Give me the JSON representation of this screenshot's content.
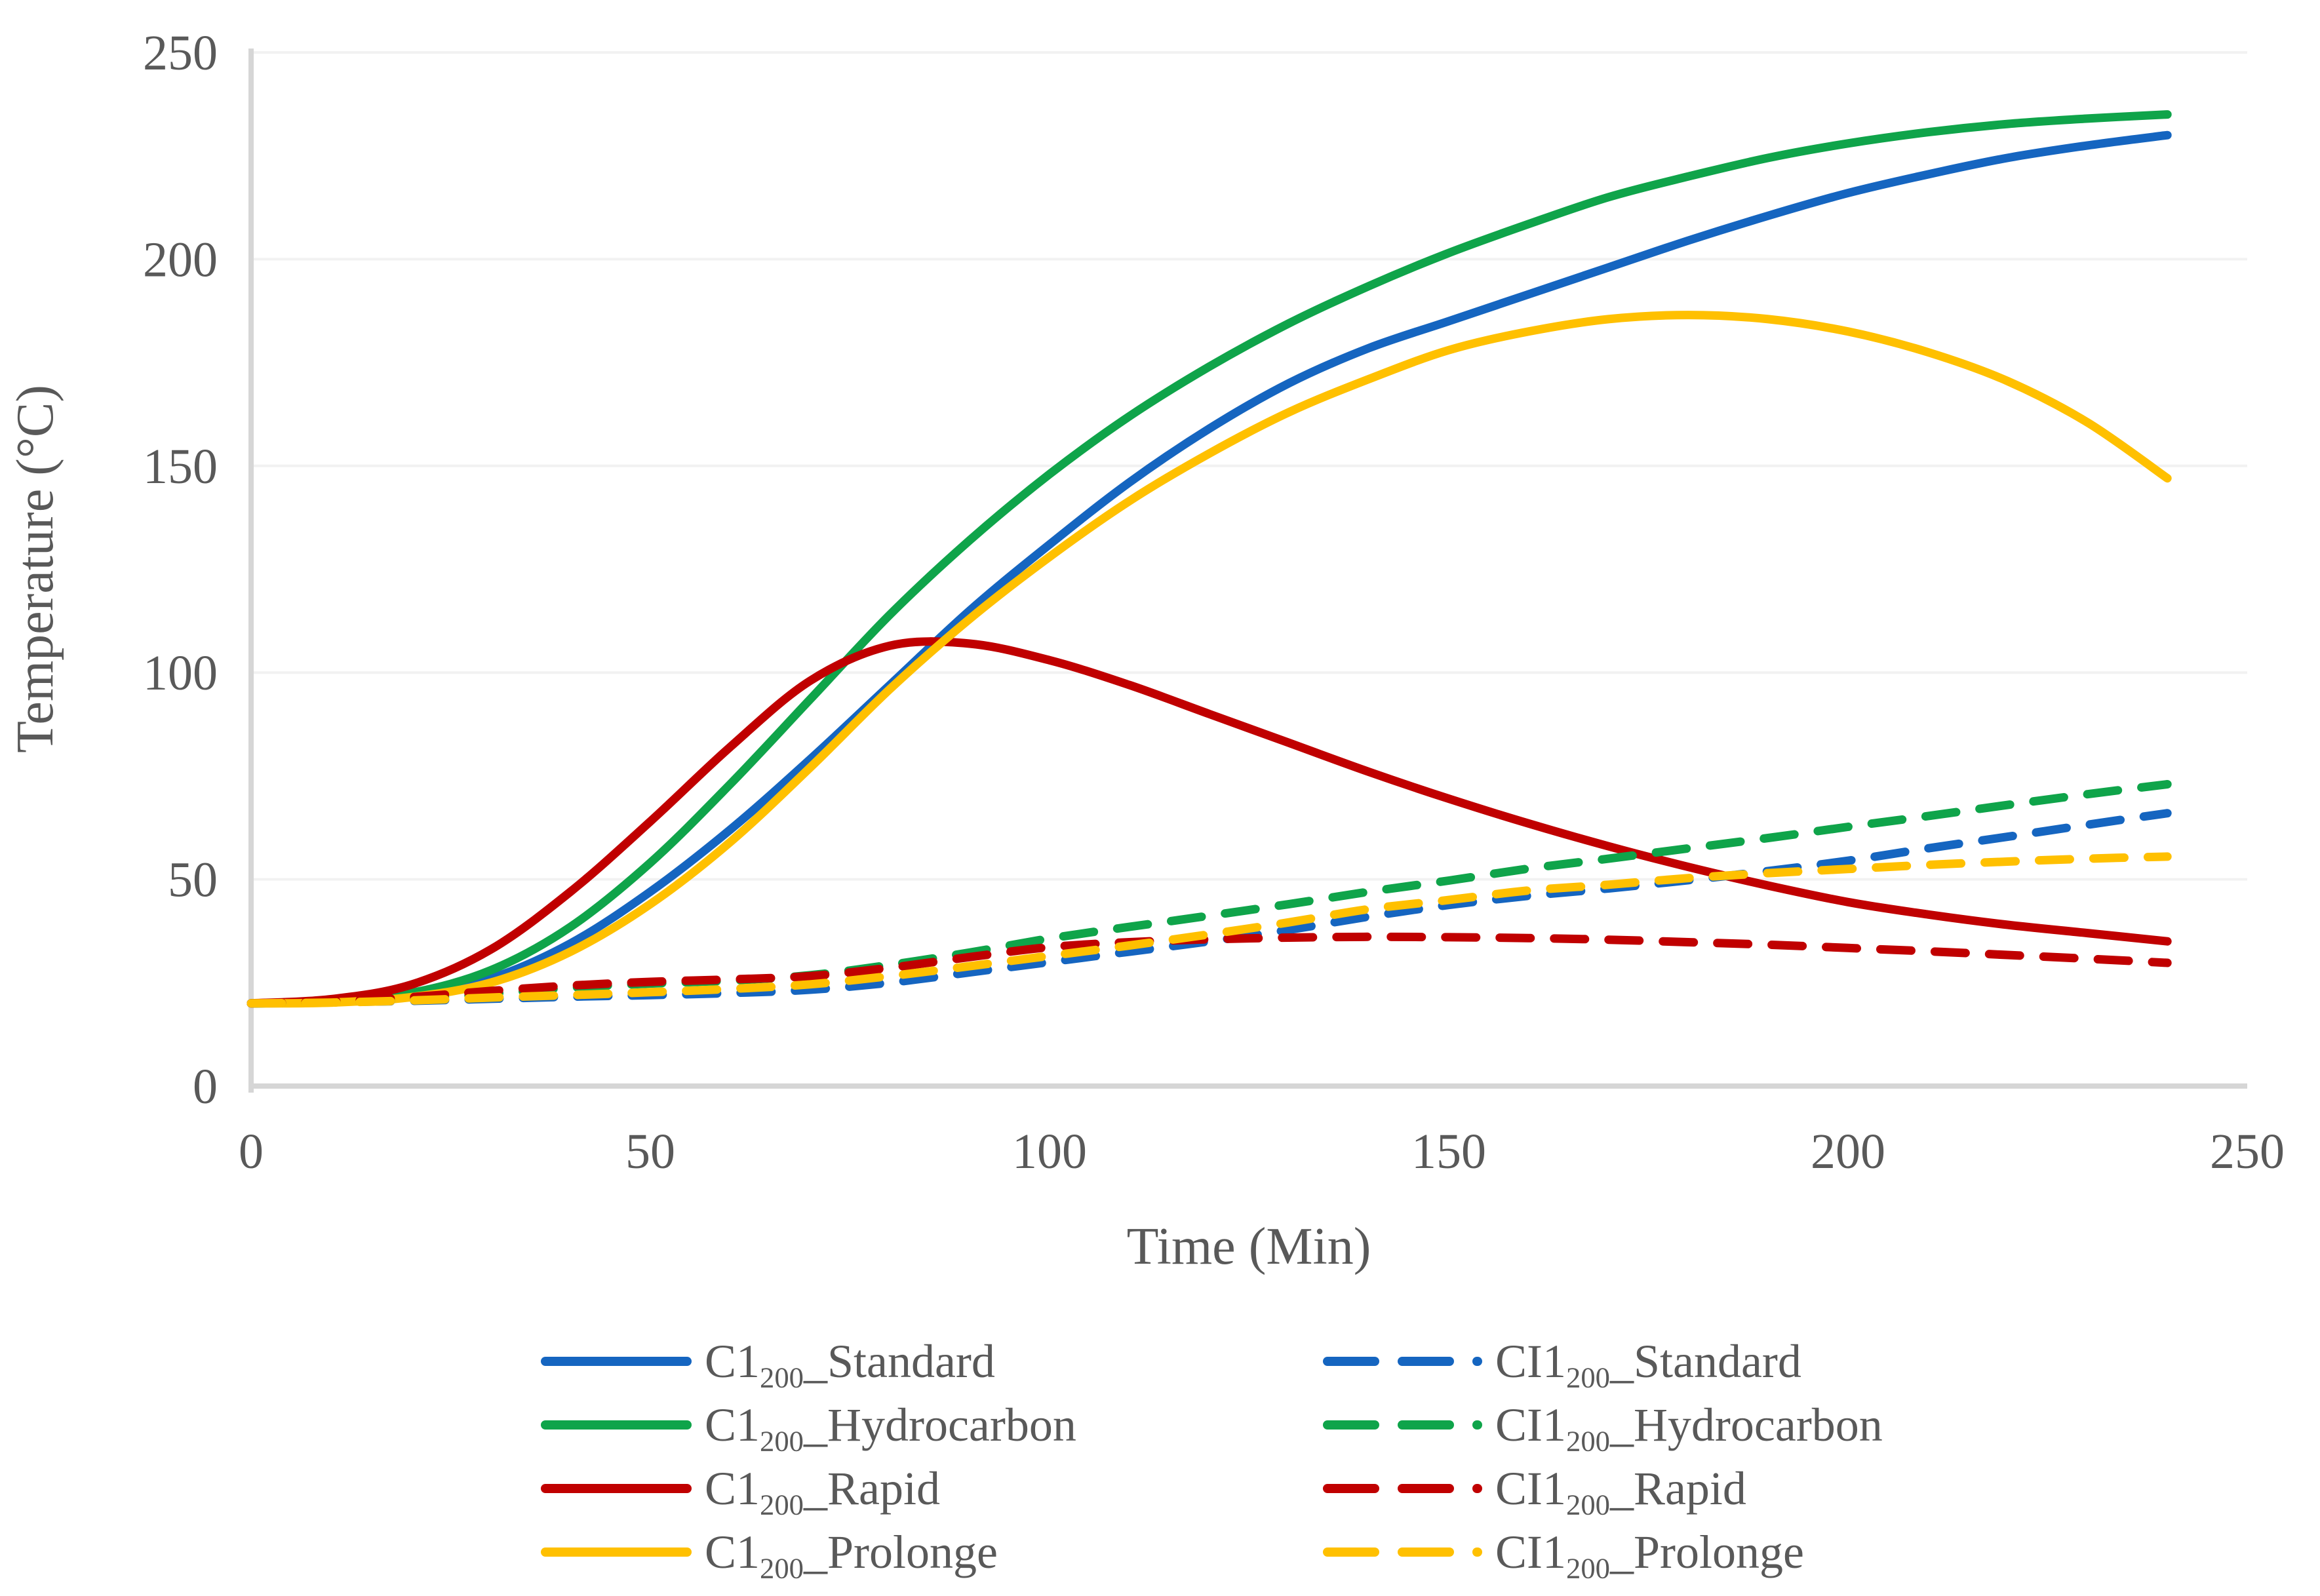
{
  "background": "#FFFFFF",
  "colors": {
    "text": "#595959",
    "gridline": "#F2F2F2",
    "axis_line": "#D6D6D6",
    "blue": "#1565C0",
    "green": "#0FA44A",
    "red": "#C00000",
    "yellow": "#FFC000"
  },
  "chart_data": {
    "type": "line",
    "title": "",
    "xlabel": "Time (Min)",
    "ylabel": "Temperature (°C)",
    "xlim": [
      0,
      250
    ],
    "ylim": [
      0,
      250
    ],
    "x_ticks": [
      0,
      50,
      100,
      150,
      200,
      250
    ],
    "y_ticks": [
      0,
      50,
      100,
      150,
      200,
      250
    ],
    "grid": "horizontal-only",
    "legend_position": "bottom-two-columns",
    "x": [
      0,
      10,
      20,
      30,
      40,
      50,
      60,
      70,
      80,
      90,
      100,
      110,
      120,
      130,
      140,
      150,
      160,
      170,
      180,
      190,
      200,
      210,
      220,
      230,
      240
    ],
    "series": [
      {
        "name": "C1200_Standard",
        "label_main": "C1",
        "label_sub": "200",
        "label_rest": "_Standard",
        "color": "#1565C0",
        "style": "solid",
        "values": [
          20,
          20.3,
          21.8,
          26,
          34.5,
          47,
          62,
          79,
          97,
          115,
          131,
          146,
          159,
          170,
          178.5,
          185,
          191.5,
          198,
          204.5,
          210.5,
          216,
          220.5,
          224.5,
          227.5,
          230
        ]
      },
      {
        "name": "C1200_Hydrocarbon",
        "label_main": "C1",
        "label_sub": "200",
        "label_rest": "_Hydrocarbon",
        "color": "#0FA44A",
        "style": "solid",
        "values": [
          20,
          20.5,
          22.5,
          28,
          38.5,
          54,
          73,
          93.5,
          114,
          132,
          148,
          162,
          174,
          184.5,
          193.5,
          201.5,
          208.5,
          215,
          220,
          224.5,
          228,
          230.7,
          232.7,
          234,
          235
        ]
      },
      {
        "name": "C1200_Rapid",
        "label_main": "C1",
        "label_sub": "200",
        "label_rest": "_Rapid",
        "color": "#C00000",
        "style": "solid",
        "values": [
          20,
          21,
          24.5,
          33,
          47,
          64,
          82,
          98,
          106.5,
          107,
          103,
          97,
          90,
          83,
          76,
          69.5,
          63.5,
          58,
          53,
          48.5,
          44.5,
          41.5,
          39,
          37,
          35
        ]
      },
      {
        "name": "C1200_Prolonge",
        "label_main": "C1",
        "label_sub": "200",
        "label_rest": "_Prolonge",
        "color": "#FFC000",
        "style": "solid",
        "values": [
          20,
          20.2,
          21.5,
          25,
          32.5,
          44,
          59,
          77,
          96,
          113,
          128,
          141.5,
          153,
          163,
          171,
          178,
          182.5,
          185.5,
          186.5,
          185.5,
          182.5,
          177.5,
          170.5,
          160.5,
          147
        ]
      },
      {
        "name": "CI1200_Standard",
        "label_main": "CI1",
        "label_sub": "200",
        "label_rest": "_Standard",
        "color": "#1565C0",
        "style": "dashed",
        "values": [
          20,
          20.3,
          20.6,
          21.1,
          21.6,
          22,
          22.5,
          23.3,
          25,
          27.5,
          30,
          32.5,
          35,
          37.8,
          41,
          43.8,
          46,
          47.8,
          49.8,
          52,
          54.5,
          57.5,
          60.3,
          63.2,
          66
        ]
      },
      {
        "name": "CI1200_Hydrocarbon",
        "label_main": "CI1",
        "label_sub": "200",
        "label_rest": "_Hydrocarbon",
        "color": "#0FA44A",
        "style": "dashed",
        "values": [
          20,
          20.3,
          21,
          22.3,
          23.8,
          24.8,
          25.5,
          26.8,
          29.3,
          32.3,
          35.7,
          38.5,
          41.2,
          44,
          47,
          49.7,
          52.6,
          55,
          57.5,
          60,
          62.7,
          65.3,
          68,
          70.6,
          73
        ]
      },
      {
        "name": "CI1200_Rapid",
        "label_main": "CI1",
        "label_sub": "200",
        "label_rest": "_Rapid",
        "color": "#C00000",
        "style": "dashed",
        "values": [
          20,
          20.5,
          21.5,
          23,
          24.3,
          25.2,
          25.8,
          26.6,
          28.6,
          31.2,
          33.6,
          34.8,
          35.5,
          35.9,
          36.1,
          36,
          35.8,
          35.4,
          34.8,
          34.2,
          33.4,
          32.6,
          31.7,
          30.8,
          29.8
        ]
      },
      {
        "name": "CI1200_Prolonge",
        "label_main": "CI1",
        "label_sub": "200",
        "label_rest": "_Prolonge",
        "color": "#FFC000",
        "style": "dashed",
        "values": [
          20,
          20.2,
          20.7,
          21.4,
          22,
          22.7,
          23.5,
          24.6,
          26.6,
          29,
          31.5,
          34,
          36.7,
          39.6,
          42.8,
          45,
          47.3,
          48.7,
          50.3,
          51.5,
          52.5,
          53.5,
          54.3,
          55,
          55.5
        ]
      }
    ]
  }
}
